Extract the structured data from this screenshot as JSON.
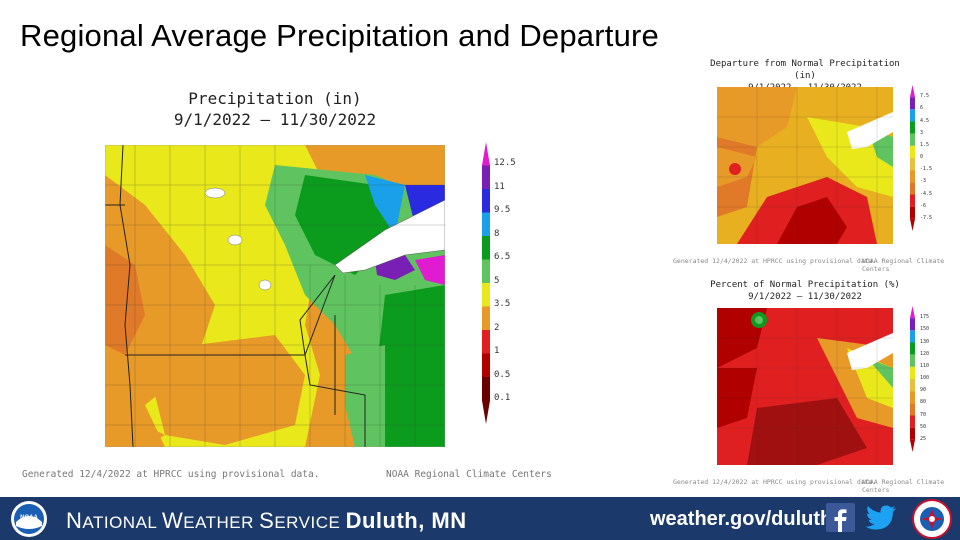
{
  "slide": {
    "title": "Regional Average Precipitation and Departure"
  },
  "main_map": {
    "title_line1": "Precipitation (in)",
    "title_line2": "9/1/2022 – 11/30/2022",
    "legend_ticks": [
      "12.5",
      "11",
      "9.5",
      "8",
      "6.5",
      "5",
      "3.5",
      "2",
      "1",
      "0.5",
      "0.1"
    ],
    "legend_colors": [
      "#e01bd0",
      "#7a1fb5",
      "#2a2ae0",
      "#1aa0e8",
      "#0b9c1e",
      "#5fc45f",
      "#e8e81a",
      "#e89a28",
      "#e02020",
      "#b00000",
      "#6b0000"
    ],
    "generated_note": "Generated 12/4/2022 at HPRCC using provisional data.",
    "source_note": "NOAA Regional Climate Centers"
  },
  "departure_map": {
    "title_line1": "Departure from Normal Precipitation (in)",
    "title_line2": "9/1/2022 – 11/30/2022",
    "legend_ticks": [
      "7.5",
      "6",
      "4.5",
      "3",
      "1.5",
      "0",
      "-1.5",
      "-3",
      "-4.5",
      "-6",
      "-7.5"
    ],
    "generated_note": "Generated 12/4/2022 at HPRCC using provisional data.",
    "source_note": "NOAA Regional Climate Centers"
  },
  "percent_map": {
    "title_line1": "Percent of Normal Precipitation (%)",
    "title_line2": "9/1/2022 – 11/30/2022",
    "legend_ticks": [
      "175",
      "150",
      "130",
      "120",
      "110",
      "100",
      "90",
      "80",
      "70",
      "50",
      "25"
    ],
    "generated_note": "Generated 12/4/2022 at HPRCC using provisional data.",
    "source_note": "NOAA Regional Climate Centers"
  },
  "banner": {
    "org_first": "N",
    "org_rest1": "ATIONAL ",
    "org_w": "W",
    "org_rest2": "EATHER ",
    "org_s": "S",
    "org_rest3": "ERVICE ",
    "office": "Duluth, MN",
    "url": "weather.gov/duluth",
    "noaa_logo": "noaa-logo",
    "nws_logo": "nws-logo",
    "facebook_icon": "facebook-icon",
    "twitter_icon": "twitter-icon"
  }
}
